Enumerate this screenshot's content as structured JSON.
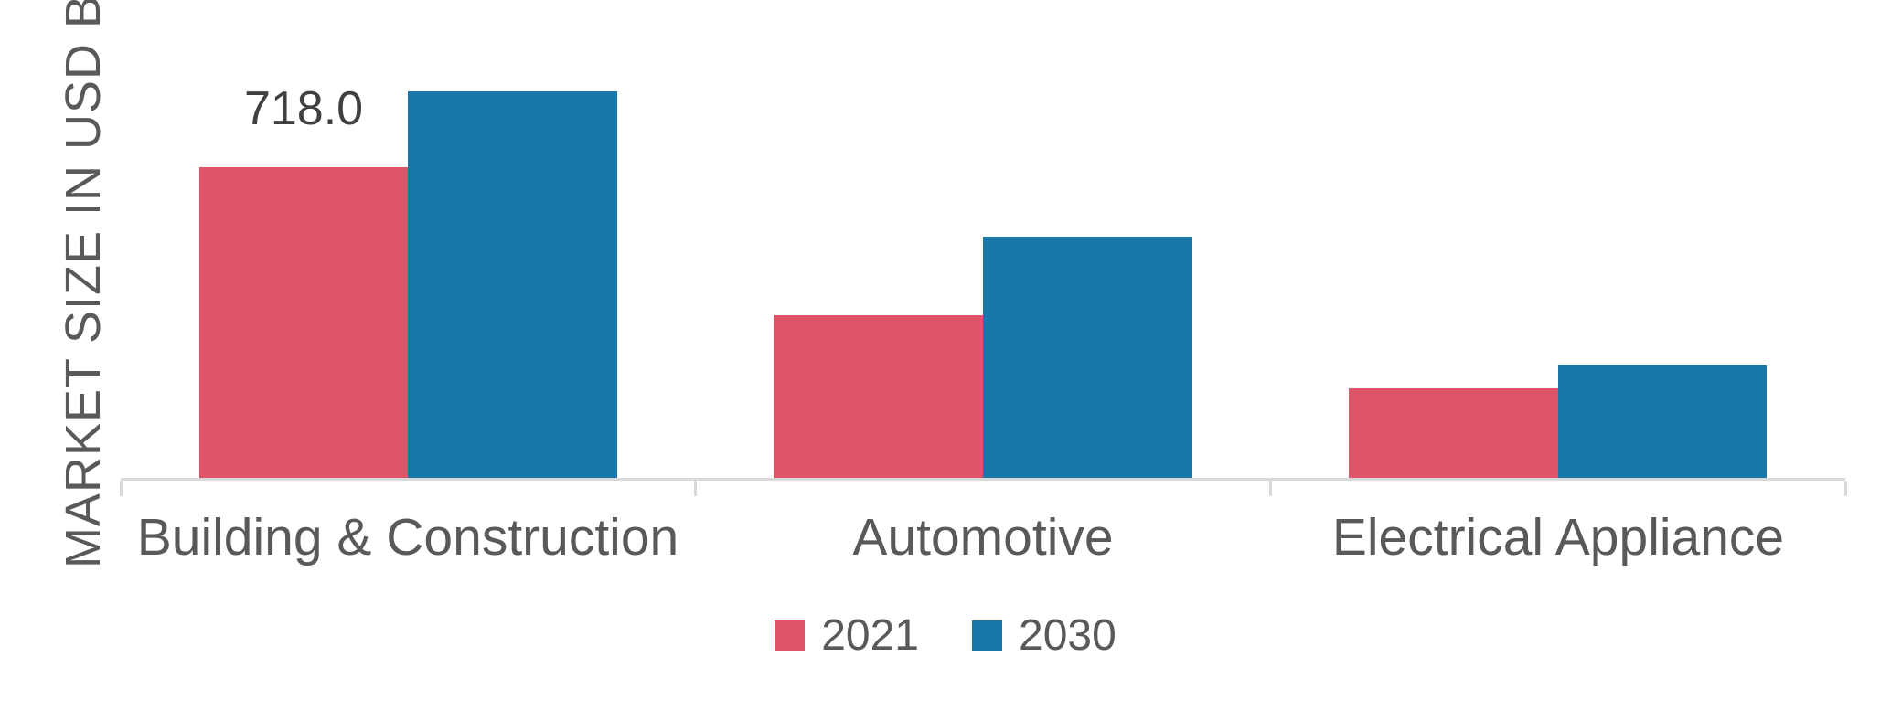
{
  "chart_data": {
    "type": "bar",
    "title": "",
    "ylabel": "MARKET SIZE IN USD BN",
    "xlabel": "",
    "categories": [
      "Building & Construction",
      "Automotive",
      "Electrical Appliance"
    ],
    "series": [
      {
        "name": "2021",
        "color": "#e05469",
        "values": [
          718.0,
          376.0,
          207.0
        ]
      },
      {
        "name": "2030",
        "color": "#1a77a9",
        "values": [
          893.0,
          558.0,
          262.0
        ]
      }
    ],
    "data_labels": [
      {
        "series_index": 0,
        "category_index": 0,
        "text": "718.0"
      }
    ],
    "ylim": [
      0,
      1040
    ],
    "grid": false,
    "legend_position": "bottom",
    "colors": {
      "axis": "#d9d9d9",
      "axis_text": "#595959",
      "data_label_text": "#404040",
      "series_2021": "#e05469",
      "series_2030": "#1a77a9"
    }
  }
}
